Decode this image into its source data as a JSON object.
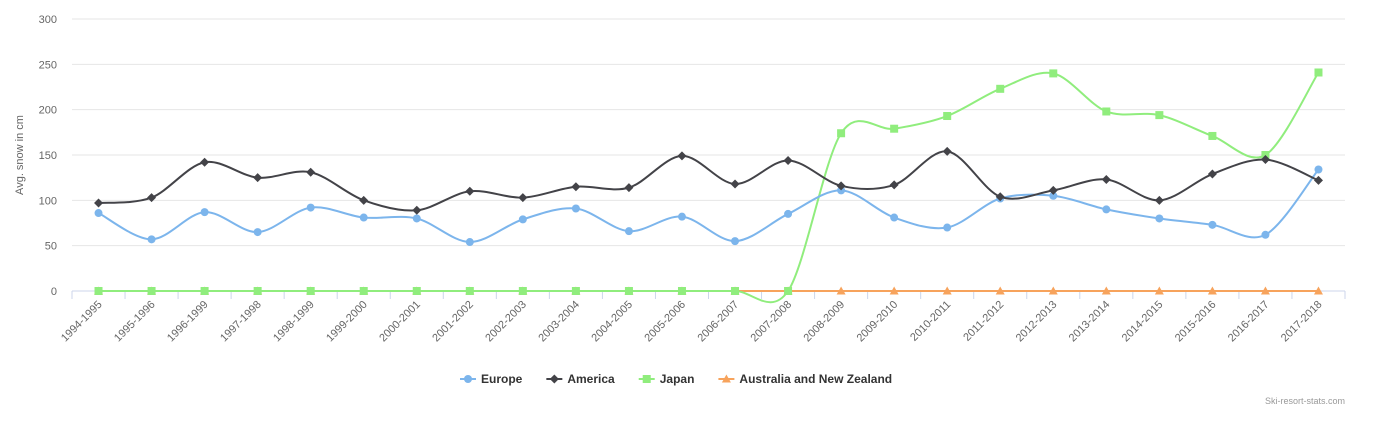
{
  "chart_data": {
    "type": "line",
    "ylabel": "Avg. snow in cm",
    "ylim": [
      0,
      300
    ],
    "yticks": [
      0,
      50,
      100,
      150,
      200,
      250,
      300
    ],
    "categories": [
      "1994-1995",
      "1995-1996",
      "1996-1999",
      "1997-1998",
      "1998-1999",
      "1999-2000",
      "2000-2001",
      "2001-2002",
      "2002-2003",
      "2003-2004",
      "2004-2005",
      "2005-2006",
      "2006-2007",
      "2007-2008",
      "2008-2009",
      "2009-2010",
      "2010-2011",
      "2011-2012",
      "2012-2013",
      "2013-2014",
      "2014-2015",
      "2015-2016",
      "2016-2017",
      "2017-2018"
    ],
    "series": [
      {
        "name": "Europe",
        "color": "#7cb5ec",
        "marker": "circle",
        "values": [
          86,
          57,
          87,
          65,
          92,
          81,
          80,
          54,
          79,
          91,
          66,
          82,
          55,
          85,
          111,
          81,
          70,
          102,
          105,
          90,
          80,
          73,
          62,
          134
        ]
      },
      {
        "name": "America",
        "color": "#434348",
        "marker": "diamond",
        "values": [
          97,
          103,
          142,
          125,
          131,
          100,
          89,
          110,
          103,
          115,
          114,
          149,
          118,
          144,
          116,
          117,
          154,
          104,
          111,
          123,
          100,
          129,
          145,
          122
        ]
      },
      {
        "name": "Japan",
        "color": "#90ed7d",
        "marker": "square",
        "values": [
          0,
          0,
          0,
          0,
          0,
          0,
          0,
          0,
          0,
          0,
          0,
          0,
          0,
          0,
          174,
          179,
          193,
          223,
          240,
          198,
          194,
          171,
          150,
          241
        ]
      },
      {
        "name": "Australia and New Zealand",
        "color": "#f7a35c",
        "marker": "triangle",
        "values": [
          0,
          0,
          0,
          0,
          0,
          0,
          0,
          0,
          0,
          0,
          0,
          0,
          0,
          0,
          0,
          0,
          0,
          0,
          0,
          0,
          0,
          0,
          0,
          0
        ]
      }
    ],
    "grid": true,
    "legend_position": "bottom"
  },
  "credit": "Ski-resort-stats.com"
}
